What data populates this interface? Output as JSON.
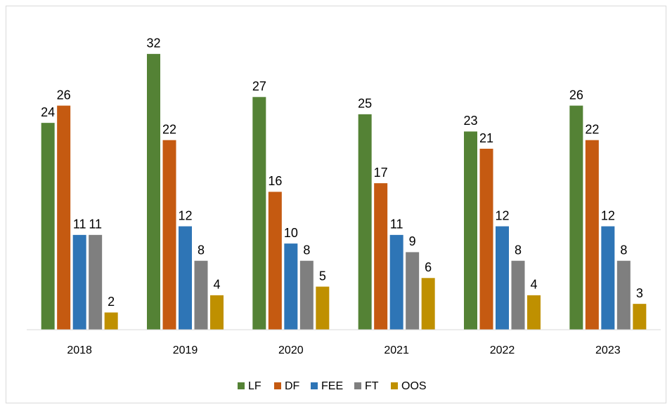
{
  "chart_data": {
    "type": "bar",
    "categories": [
      "2018",
      "2019",
      "2020",
      "2021",
      "2022",
      "2023"
    ],
    "series": [
      {
        "name": "LF",
        "color": "#548235",
        "values": [
          24,
          32,
          27,
          25,
          23,
          26
        ]
      },
      {
        "name": "DF",
        "color": "#c55a11",
        "values": [
          26,
          22,
          16,
          17,
          21,
          22
        ]
      },
      {
        "name": "FEE",
        "color": "#2e75b6",
        "values": [
          11,
          12,
          10,
          11,
          12,
          12
        ]
      },
      {
        "name": "FT",
        "color": "#7f7f7f",
        "values": [
          11,
          8,
          8,
          9,
          8,
          8
        ]
      },
      {
        "name": "OOS",
        "color": "#bf9000",
        "values": [
          2,
          4,
          5,
          6,
          4,
          3
        ]
      }
    ],
    "ylim": [
      0,
      35
    ]
  }
}
